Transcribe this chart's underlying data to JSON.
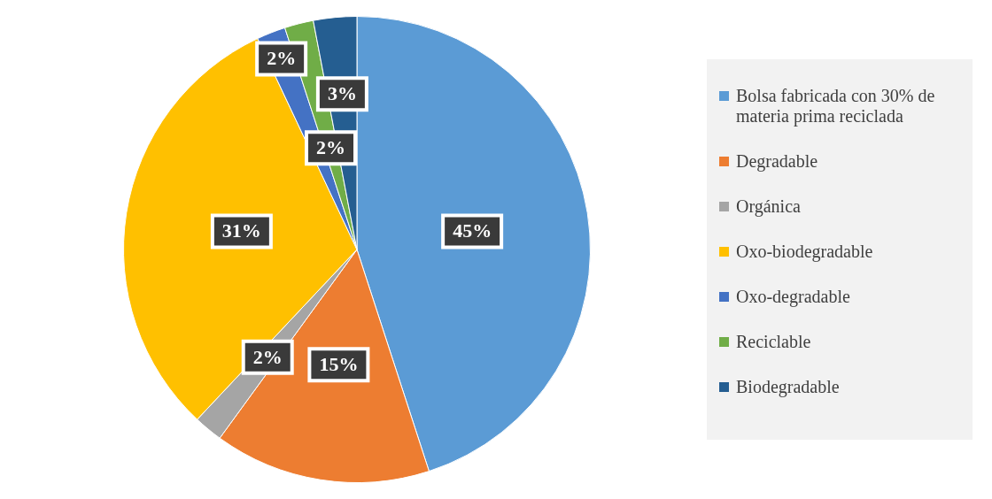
{
  "chart_data": {
    "type": "pie",
    "categories": [
      "Bolsa fabricada con 30% de materia prima reciclada",
      "Degradable",
      "Orgánica",
      "Oxo-biodegradable",
      "Oxo-degradable",
      "Reciclable",
      "Biodegradable"
    ],
    "values": [
      45,
      15,
      2,
      31,
      2,
      2,
      3
    ],
    "colors": [
      "#5b9bd5",
      "#ed7d31",
      "#a5a5a5",
      "#ffc000",
      "#4472c4",
      "#70ad47",
      "#255e91"
    ],
    "value_labels": [
      "45%",
      "15%",
      "2%",
      "31%",
      "2%",
      "2%",
      "3%"
    ],
    "legend": "right"
  }
}
